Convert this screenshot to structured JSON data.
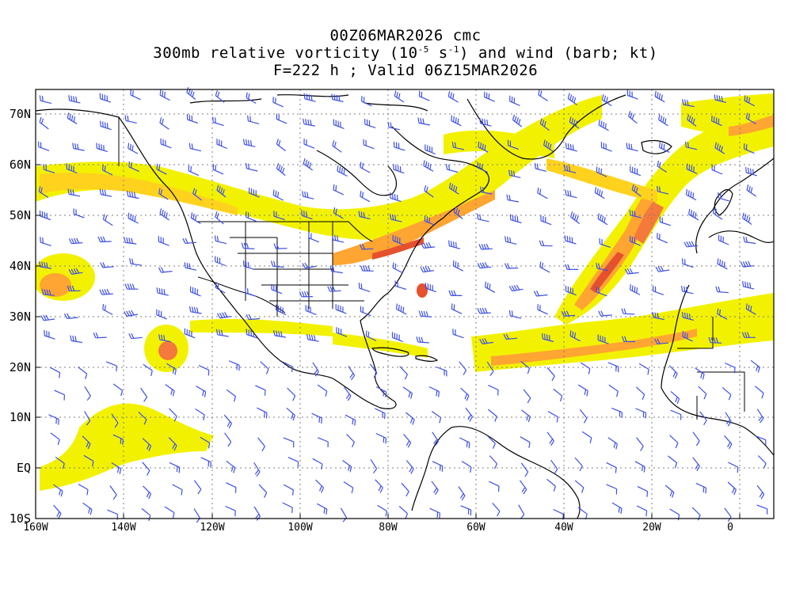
{
  "title": {
    "line1": "00Z06MAR2026 cmc",
    "line2_prefix": "300mb relative vorticity (10",
    "line2_exp1": "-5",
    "line2_mid": " s",
    "line2_exp2": "-1",
    "line2_suffix": ") and wind (barb; kt)",
    "line3": "F=222 h ; Valid 06Z15MAR2026"
  },
  "axes": {
    "lat_labels": [
      "70N",
      "60N",
      "50N",
      "40N",
      "30N",
      "20N",
      "10N",
      "EQ",
      "10S"
    ],
    "lon_labels": [
      "160W",
      "140W",
      "120W",
      "100W",
      "80W",
      "60W",
      "40W",
      "20W",
      "0"
    ]
  },
  "colors": {
    "level1": "#f2f200",
    "level2": "#ffd21e",
    "level3": "#ffa532",
    "level4": "#f5783c",
    "level5": "#e6502d",
    "barb": "#3c50e6",
    "coast": "#000000",
    "grid": "#7f7f7f"
  }
}
